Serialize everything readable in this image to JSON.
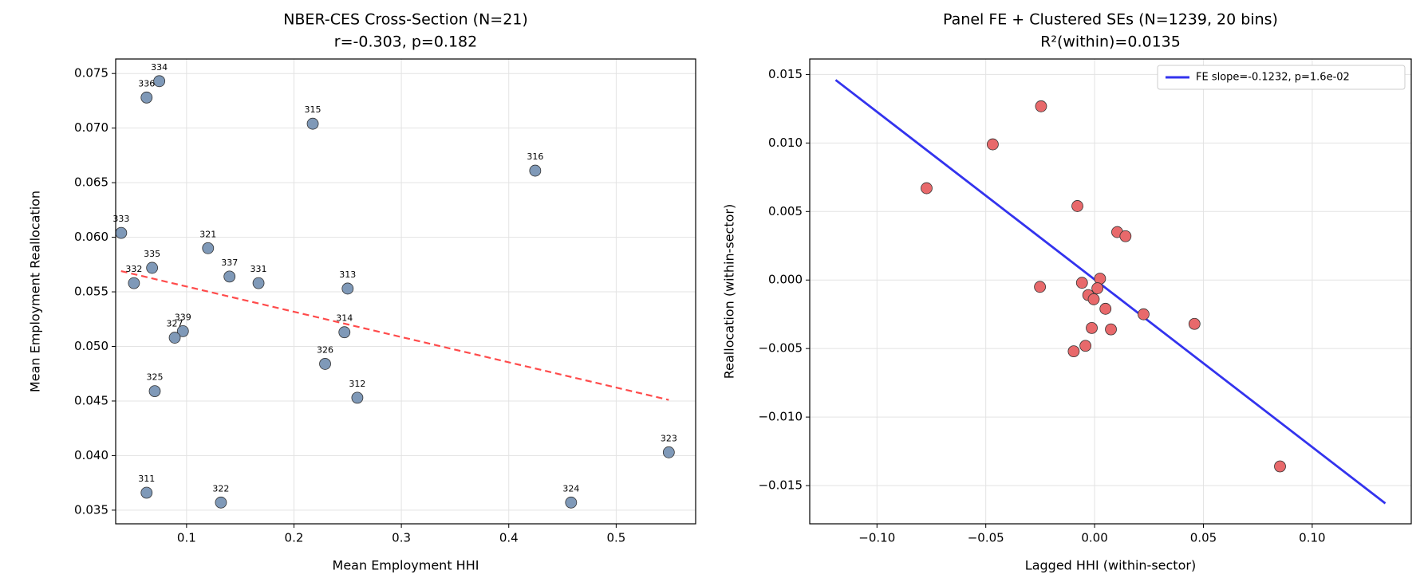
{
  "chart_data": [
    {
      "type": "scatter",
      "title": "NBER-CES Cross-Section (N=21)",
      "subtitle": "r=-0.303, p=0.182",
      "x_label": "Mean Employment HHI",
      "y_label": "Mean Employment Reallocation",
      "xlim": [
        0.034,
        0.574
      ],
      "ylim": [
        0.03375,
        0.07633
      ],
      "xticks": [
        0.1,
        0.2,
        0.3,
        0.4,
        0.5
      ],
      "yticks": [
        0.035,
        {
          "value": 0.04,
          "label": "0.040"
        },
        0.045,
        {
          "value": 0.05,
          "label": "0.050"
        },
        0.055,
        {
          "value": 0.06,
          "label": "0.060"
        },
        0.065,
        {
          "value": 0.07,
          "label": "0.070"
        },
        0.075
      ],
      "grid": true,
      "points": {
        "color": "#7f99b8",
        "labels": [
          "334",
          "336",
          "315",
          "316",
          "333",
          "321",
          "335",
          "337",
          "331",
          "332",
          "313",
          "339",
          "327",
          "314",
          "326",
          "325",
          "312",
          "323",
          "311",
          "322",
          "324"
        ],
        "x": [
          0.0746,
          0.0628,
          0.2175,
          0.4246,
          0.0391,
          0.12,
          0.0679,
          0.14,
          0.167,
          0.051,
          0.25,
          0.0966,
          0.089,
          0.247,
          0.229,
          0.0704,
          0.259,
          0.549,
          0.0628,
          0.132,
          0.458
        ],
        "y": [
          0.0743,
          0.0728,
          0.0704,
          0.0661,
          0.0604,
          0.059,
          0.0572,
          0.0564,
          0.0558,
          0.0558,
          0.0553,
          0.0514,
          0.0508,
          0.0513,
          0.0484,
          0.0459,
          0.0453,
          0.0403,
          0.0366,
          0.0357,
          0.0357
        ]
      },
      "fit_line": {
        "color": "#ff4b4b",
        "dashed": true,
        "x": [
          0.039,
          0.549
        ],
        "y": [
          0.0569,
          0.0451
        ]
      }
    },
    {
      "type": "scatter",
      "title": "Panel FE + Clustered SEs (N=1239, 20 bins)",
      "subtitle": "R²(within)=0.0135",
      "x_label": "Lagged HHI (within-sector)",
      "y_label": "Reallocation (within-sector)",
      "xlim": [
        -0.1309,
        0.1455
      ],
      "ylim": [
        -0.01779,
        0.01613
      ],
      "xticks": [
        {
          "value": -0.1,
          "label": "−0.10"
        },
        {
          "value": -0.05,
          "label": "−0.05"
        },
        {
          "value": 0,
          "label": "0.00"
        },
        0.05,
        {
          "value": 0.1,
          "label": "0.10"
        }
      ],
      "yticks": [
        {
          "value": -0.015,
          "label": "−0.015"
        },
        {
          "value": -0.01,
          "label": "−0.010"
        },
        {
          "value": -0.005,
          "label": "−0.005"
        },
        {
          "value": 0,
          "label": "0.000"
        },
        0.005,
        {
          "value": 0.01,
          "label": "0.010"
        },
        0.015
      ],
      "grid": true,
      "legend": "upper right",
      "points": {
        "color": "#e8696b",
        "x": [
          -0.0246,
          -0.0468,
          -0.0772,
          -0.0079,
          0.0104,
          0.0142,
          0.0025,
          -0.0058,
          -0.0251,
          0.0013,
          -0.0029,
          -0.0004,
          0.005,
          0.0225,
          0.0459,
          -0.0013,
          0.0075,
          -0.0042,
          -0.0096,
          0.0852
        ],
        "y": [
          0.01268,
          0.0099,
          0.0067,
          0.0054,
          0.0035,
          0.0032,
          0.0001,
          -0.0002,
          -0.0005,
          -0.0006,
          -0.0011,
          -0.0014,
          -0.0021,
          -0.0025,
          -0.0032,
          -0.0035,
          -0.0036,
          -0.0048,
          -0.0052,
          -0.0136
        ]
      },
      "fit_line": {
        "name": "FE slope=-0.1232, p=1.6e-02",
        "color": "#3333ee",
        "dashed": false,
        "x": [
          -0.119,
          0.1336
        ],
        "y": [
          0.0146,
          -0.0163
        ]
      }
    }
  ]
}
